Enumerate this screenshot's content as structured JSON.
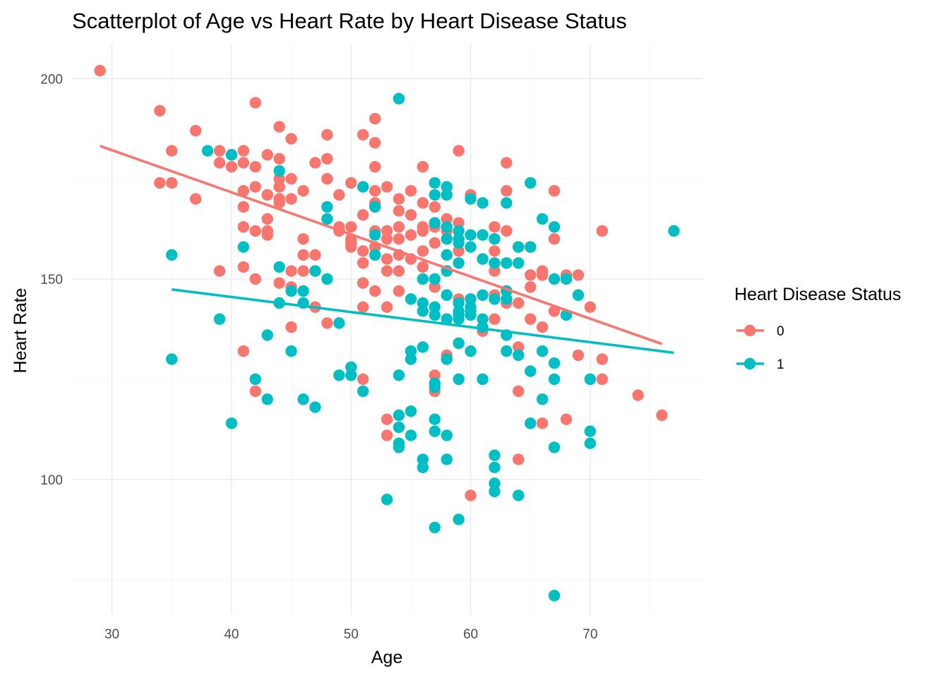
{
  "chart_data": {
    "type": "scatter",
    "title": "Scatterplot of Age vs Heart Rate by Heart Disease Status",
    "xlabel": "Age",
    "ylabel": "Heart Rate",
    "xlim": [
      26.6,
      79.4
    ],
    "ylim": [
      66.3,
      208.7
    ],
    "x_ticks": [
      30,
      40,
      50,
      60,
      70
    ],
    "y_ticks": [
      100,
      150,
      200
    ],
    "grid": true,
    "legend": {
      "title": "Heart Disease Status",
      "position": "right"
    },
    "series": [
      {
        "name": "0",
        "color": "#F8766D",
        "trend": [
          [
            29,
            183.2
          ],
          [
            76,
            133.8
          ]
        ],
        "points": [
          [
            29,
            202
          ],
          [
            34,
            192
          ],
          [
            34,
            174
          ],
          [
            35,
            182
          ],
          [
            35,
            174
          ],
          [
            37,
            187
          ],
          [
            37,
            170
          ],
          [
            39,
            182
          ],
          [
            39,
            179
          ],
          [
            39,
            152
          ],
          [
            40,
            181
          ],
          [
            40,
            178
          ],
          [
            41,
            182
          ],
          [
            41,
            179
          ],
          [
            41,
            172
          ],
          [
            41,
            168
          ],
          [
            41,
            163
          ],
          [
            41,
            153
          ],
          [
            41,
            132
          ],
          [
            42,
            194
          ],
          [
            42,
            178
          ],
          [
            42,
            173
          ],
          [
            42,
            162
          ],
          [
            42,
            150
          ],
          [
            42,
            122
          ],
          [
            43,
            181
          ],
          [
            43,
            171
          ],
          [
            43,
            165
          ],
          [
            43,
            162
          ],
          [
            43,
            161
          ],
          [
            44,
            188
          ],
          [
            44,
            180
          ],
          [
            44,
            175
          ],
          [
            44,
            173
          ],
          [
            44,
            170
          ],
          [
            44,
            169
          ],
          [
            44,
            149
          ],
          [
            45,
            185
          ],
          [
            45,
            175
          ],
          [
            45,
            170
          ],
          [
            45,
            152
          ],
          [
            45,
            148
          ],
          [
            45,
            138
          ],
          [
            46,
            172
          ],
          [
            46,
            160
          ],
          [
            46,
            156
          ],
          [
            46,
            152
          ],
          [
            46,
            147
          ],
          [
            47,
            179
          ],
          [
            47,
            156
          ],
          [
            47,
            152
          ],
          [
            47,
            143
          ],
          [
            48,
            186
          ],
          [
            48,
            180
          ],
          [
            48,
            175
          ],
          [
            48,
            139
          ],
          [
            49,
            171
          ],
          [
            49,
            163
          ],
          [
            49,
            162
          ],
          [
            50,
            174
          ],
          [
            50,
            163
          ],
          [
            50,
            160
          ],
          [
            50,
            159
          ],
          [
            50,
            158
          ],
          [
            51,
            186
          ],
          [
            51,
            166
          ],
          [
            51,
            157
          ],
          [
            51,
            154
          ],
          [
            51,
            149
          ],
          [
            51,
            143
          ],
          [
            51,
            125
          ],
          [
            52,
            190
          ],
          [
            52,
            184
          ],
          [
            52,
            178
          ],
          [
            52,
            172
          ],
          [
            52,
            169
          ],
          [
            52,
            162
          ],
          [
            52,
            158
          ],
          [
            52,
            156
          ],
          [
            52,
            147
          ],
          [
            53,
            173
          ],
          [
            53,
            162
          ],
          [
            53,
            160
          ],
          [
            53,
            155
          ],
          [
            53,
            152
          ],
          [
            53,
            143
          ],
          [
            53,
            115
          ],
          [
            53,
            111
          ],
          [
            54,
            170
          ],
          [
            54,
            167
          ],
          [
            54,
            163
          ],
          [
            54,
            160
          ],
          [
            54,
            156
          ],
          [
            54,
            152
          ],
          [
            54,
            147
          ],
          [
            55,
            172
          ],
          [
            55,
            166
          ],
          [
            55,
            161
          ],
          [
            55,
            155
          ],
          [
            56,
            178
          ],
          [
            56,
            169
          ],
          [
            56,
            163
          ],
          [
            56,
            162
          ],
          [
            56,
            157
          ],
          [
            56,
            153
          ],
          [
            57,
            168
          ],
          [
            57,
            163
          ],
          [
            57,
            159
          ],
          [
            57,
            148
          ],
          [
            57,
            126
          ],
          [
            57,
            122
          ],
          [
            58,
            165
          ],
          [
            58,
            162
          ],
          [
            58,
            160
          ],
          [
            58,
            140
          ],
          [
            58,
            131
          ],
          [
            59,
            182
          ],
          [
            59,
            164
          ],
          [
            59,
            162
          ],
          [
            59,
            157
          ],
          [
            59,
            145
          ],
          [
            60,
            171
          ],
          [
            60,
            96
          ],
          [
            61,
            137
          ],
          [
            62,
            163
          ],
          [
            62,
            157
          ],
          [
            62,
            152
          ],
          [
            62,
            146
          ],
          [
            62,
            140
          ],
          [
            63,
            179
          ],
          [
            63,
            172
          ],
          [
            63,
            162
          ],
          [
            63,
            154
          ],
          [
            63,
            147
          ],
          [
            63,
            144
          ],
          [
            64,
            158
          ],
          [
            64,
            144
          ],
          [
            64,
            133
          ],
          [
            64,
            122
          ],
          [
            64,
            105
          ],
          [
            65,
            158
          ],
          [
            65,
            151
          ],
          [
            65,
            148
          ],
          [
            65,
            140
          ],
          [
            66,
            152
          ],
          [
            66,
            151
          ],
          [
            66,
            138
          ],
          [
            66,
            114
          ],
          [
            67,
            172
          ],
          [
            67,
            160
          ],
          [
            67,
            142
          ],
          [
            68,
            151
          ],
          [
            68,
            115
          ],
          [
            69,
            151
          ],
          [
            69,
            131
          ],
          [
            70,
            143
          ],
          [
            71,
            162
          ],
          [
            71,
            130
          ],
          [
            71,
            125
          ],
          [
            74,
            121
          ],
          [
            76,
            116
          ]
        ]
      },
      {
        "name": "1",
        "color": "#00BFC4",
        "trend": [
          [
            35,
            147.4
          ],
          [
            77,
            131.6
          ]
        ],
        "points": [
          [
            35,
            156
          ],
          [
            35,
            130
          ],
          [
            38,
            182
          ],
          [
            39,
            140
          ],
          [
            40,
            181
          ],
          [
            40,
            114
          ],
          [
            41,
            158
          ],
          [
            42,
            125
          ],
          [
            43,
            136
          ],
          [
            43,
            120
          ],
          [
            44,
            177
          ],
          [
            44,
            153
          ],
          [
            44,
            144
          ],
          [
            45,
            147
          ],
          [
            45,
            132
          ],
          [
            46,
            147
          ],
          [
            46,
            144
          ],
          [
            46,
            120
          ],
          [
            47,
            152
          ],
          [
            47,
            118
          ],
          [
            48,
            168
          ],
          [
            48,
            165
          ],
          [
            48,
            150
          ],
          [
            49,
            139
          ],
          [
            49,
            126
          ],
          [
            50,
            128
          ],
          [
            50,
            126
          ],
          [
            51,
            173
          ],
          [
            51,
            122
          ],
          [
            52,
            168
          ],
          [
            52,
            161
          ],
          [
            52,
            156
          ],
          [
            53,
            95
          ],
          [
            54,
            195
          ],
          [
            54,
            126
          ],
          [
            54,
            116
          ],
          [
            54,
            113
          ],
          [
            54,
            109
          ],
          [
            54,
            108
          ],
          [
            55,
            145
          ],
          [
            55,
            132
          ],
          [
            55,
            130
          ],
          [
            55,
            117
          ],
          [
            55,
            111
          ],
          [
            56,
            150
          ],
          [
            56,
            144
          ],
          [
            56,
            142
          ],
          [
            56,
            133
          ],
          [
            56,
            105
          ],
          [
            56,
            103
          ],
          [
            57,
            174
          ],
          [
            57,
            171
          ],
          [
            57,
            164
          ],
          [
            57,
            150
          ],
          [
            57,
            143
          ],
          [
            57,
            141
          ],
          [
            57,
            124
          ],
          [
            57,
            123
          ],
          [
            57,
            115
          ],
          [
            57,
            112
          ],
          [
            57,
            88
          ],
          [
            58,
            173
          ],
          [
            58,
            171
          ],
          [
            58,
            163
          ],
          [
            58,
            160
          ],
          [
            58,
            156
          ],
          [
            58,
            152
          ],
          [
            58,
            146
          ],
          [
            58,
            140
          ],
          [
            58,
            130
          ],
          [
            58,
            111
          ],
          [
            58,
            105
          ],
          [
            59,
            162
          ],
          [
            59,
            160
          ],
          [
            59,
            159
          ],
          [
            59,
            154
          ],
          [
            59,
            144
          ],
          [
            59,
            142
          ],
          [
            59,
            141
          ],
          [
            59,
            140
          ],
          [
            59,
            134
          ],
          [
            59,
            125
          ],
          [
            59,
            90
          ],
          [
            60,
            170
          ],
          [
            60,
            161
          ],
          [
            60,
            158
          ],
          [
            60,
            145
          ],
          [
            60,
            143
          ],
          [
            60,
            142
          ],
          [
            60,
            141
          ],
          [
            60,
            132
          ],
          [
            61,
            169
          ],
          [
            61,
            161
          ],
          [
            61,
            155
          ],
          [
            61,
            146
          ],
          [
            61,
            140
          ],
          [
            61,
            138
          ],
          [
            61,
            125
          ],
          [
            62,
            160
          ],
          [
            62,
            154
          ],
          [
            62,
            145
          ],
          [
            62,
            106
          ],
          [
            62,
            103
          ],
          [
            62,
            99
          ],
          [
            62,
            97
          ],
          [
            63,
            169
          ],
          [
            63,
            154
          ],
          [
            63,
            147
          ],
          [
            63,
            145
          ],
          [
            63,
            136
          ],
          [
            63,
            132
          ],
          [
            64,
            158
          ],
          [
            64,
            154
          ],
          [
            64,
            131
          ],
          [
            64,
            96
          ],
          [
            65,
            174
          ],
          [
            65,
            158
          ],
          [
            65,
            127
          ],
          [
            65,
            114
          ],
          [
            66,
            165
          ],
          [
            66,
            132
          ],
          [
            66,
            120
          ],
          [
            67,
            163
          ],
          [
            67,
            150
          ],
          [
            67,
            129
          ],
          [
            67,
            125
          ],
          [
            67,
            108
          ],
          [
            67,
            71
          ],
          [
            68,
            150
          ],
          [
            68,
            141
          ],
          [
            69,
            146
          ],
          [
            70,
            125
          ],
          [
            70,
            112
          ],
          [
            70,
            109
          ],
          [
            77,
            162
          ]
        ]
      }
    ]
  }
}
